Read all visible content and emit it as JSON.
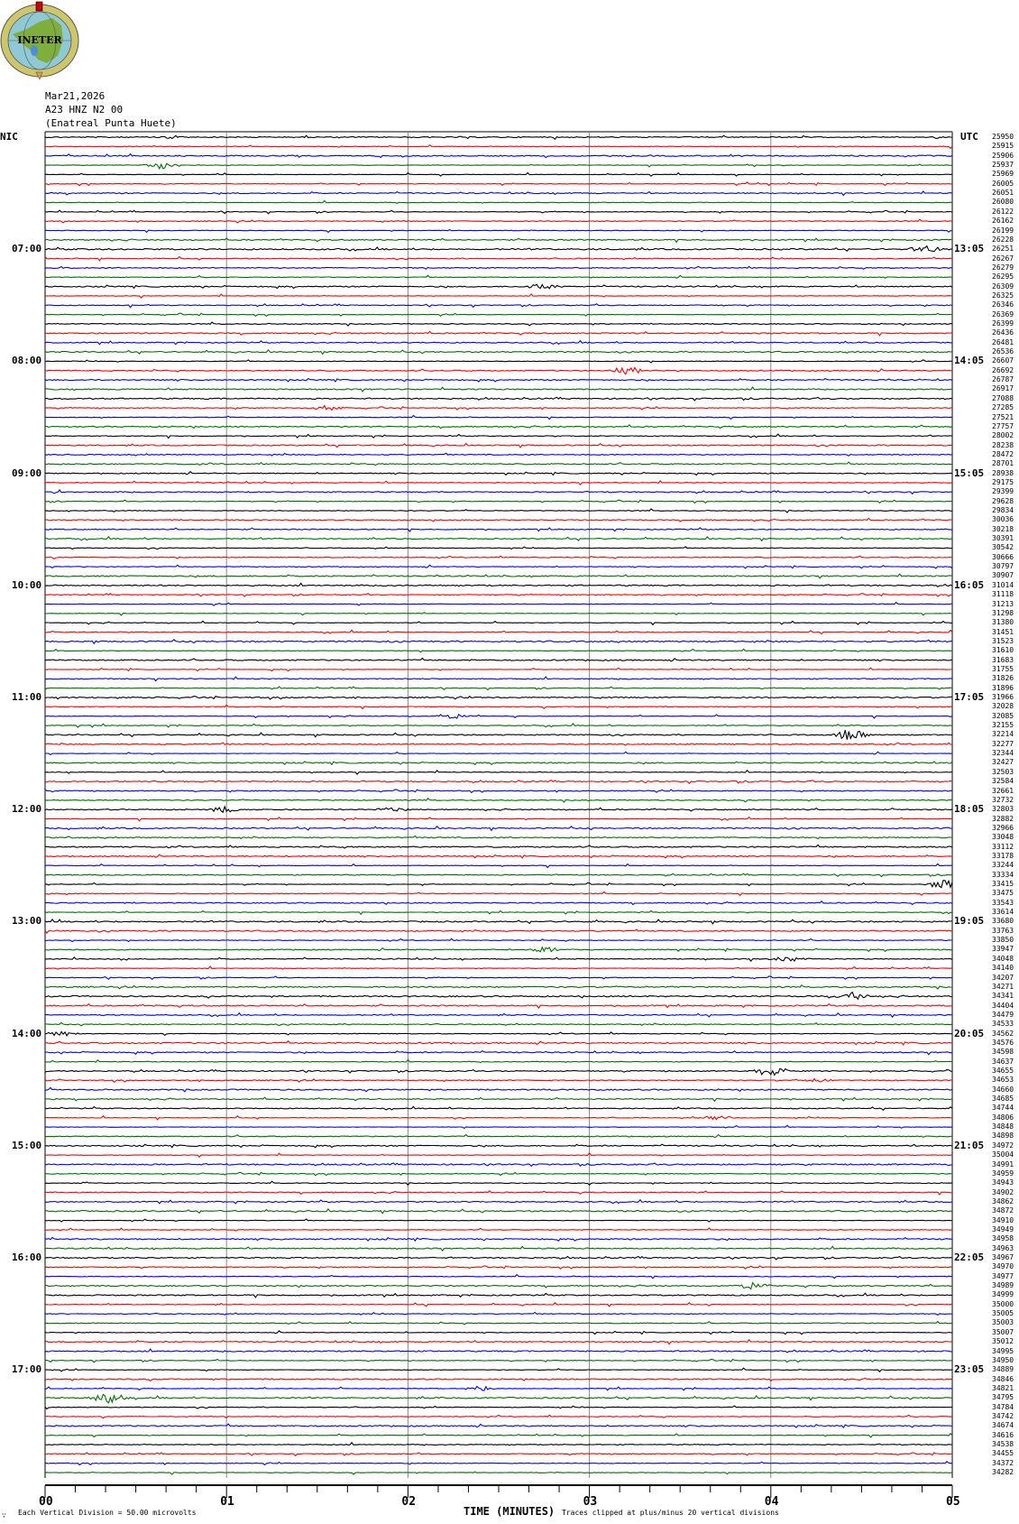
{
  "logo": {
    "text": "INETER",
    "colors": {
      "ring": "#cfc66a",
      "globe": "#8fc9d6",
      "land": "#7fae3c",
      "lake": "#4a8fd8"
    }
  },
  "header": {
    "date": "Mar21,2026",
    "channel": "A23 HNZ N2 00",
    "station": "(Enatreal Punta Huete)"
  },
  "left_zone_label": "NIC",
  "right_zone_label": "UTC",
  "footer": {
    "scale_note": "Each Vertical Division =    50.00 microvolts",
    "xlabel": "TIME (MINUTES)",
    "clip_note": "Traces clipped at plus/minus 20 vertical divisions",
    "corner_mark": "∵"
  },
  "chart_data": {
    "type": "line",
    "subtype": "helicorder",
    "xlabel": "TIME (MINUTES)",
    "xlim": [
      0,
      5
    ],
    "x_ticks": [
      "00",
      "01",
      "02",
      "03",
      "04",
      "05"
    ],
    "grid": true,
    "trace_colors": [
      "#000000",
      "#ff0000",
      "#0000ff",
      "#007000"
    ],
    "left_time_labels": [
      "07:00",
      "08:00",
      "09:00",
      "10:00",
      "11:00",
      "12:00",
      "13:00",
      "14:00",
      "15:00",
      "16:00",
      "17:00"
    ],
    "right_time_labels": [
      "13:05",
      "14:05",
      "15:05",
      "16:05",
      "17:05",
      "18:05",
      "19:05",
      "20:05",
      "21:05",
      "22:05",
      "23:05"
    ],
    "rows_per_hour": 12,
    "first_row_hour": 6,
    "row_counts": [
      25950,
      25915,
      25906,
      25937,
      25969,
      26005,
      26051,
      26080,
      26122,
      26162,
      26199,
      26228,
      26251,
      26267,
      26279,
      26295,
      26309,
      26325,
      26346,
      26369,
      26399,
      26436,
      26481,
      26536,
      26607,
      26692,
      26787,
      26917,
      27088,
      27285,
      27521,
      27757,
      28002,
      28238,
      28472,
      28701,
      28938,
      29175,
      29399,
      29628,
      29834,
      30036,
      30218,
      30391,
      30542,
      30666,
      30797,
      30907,
      31014,
      31118,
      31213,
      31298,
      31380,
      31451,
      31523,
      31610,
      31683,
      31755,
      31826,
      31896,
      31966,
      32028,
      32085,
      32155,
      32214,
      32277,
      32344,
      32427,
      32503,
      32584,
      32661,
      32732,
      32803,
      32882,
      32966,
      33048,
      33112,
      33178,
      33244,
      33334,
      33415,
      33475,
      33543,
      33614,
      33680,
      33763,
      33850,
      33947,
      34048,
      34140,
      34207,
      34271,
      34341,
      34404,
      34479,
      34533,
      34562,
      34576,
      34598,
      34637,
      34655,
      34653,
      34660,
      34685,
      34744,
      34806,
      34848,
      34898,
      34972,
      35004,
      34991,
      34959,
      34943,
      34902,
      34862,
      34872,
      34910,
      34949,
      34958,
      34963,
      34967,
      34970,
      34977,
      34989,
      34999,
      35000,
      35005,
      35003,
      35007,
      35012,
      34995,
      34950,
      34889,
      34846,
      34821,
      34795,
      34784,
      34742,
      34674,
      34616,
      34538,
      34455,
      34372,
      34282
    ],
    "events": [
      {
        "row": 1,
        "minute": 0.7,
        "amp": 2
      },
      {
        "row": 4,
        "minute": 0.65,
        "amp": 5
      },
      {
        "row": 13,
        "minute": 4.85,
        "amp": 5
      },
      {
        "row": 17,
        "minute": 2.75,
        "amp": 3
      },
      {
        "row": 26,
        "minute": 3.2,
        "amp": 6
      },
      {
        "row": 30,
        "minute": 1.55,
        "amp": 3
      },
      {
        "row": 63,
        "minute": 2.25,
        "amp": 3
      },
      {
        "row": 65,
        "minute": 4.45,
        "amp": 8
      },
      {
        "row": 73,
        "minute": 0.98,
        "amp": 4
      },
      {
        "row": 73,
        "minute": 1.92,
        "amp": 3
      },
      {
        "row": 81,
        "minute": 4.95,
        "amp": 6
      },
      {
        "row": 88,
        "minute": 2.75,
        "amp": 4
      },
      {
        "row": 89,
        "minute": 4.1,
        "amp": 3
      },
      {
        "row": 93,
        "minute": 4.45,
        "amp": 4
      },
      {
        "row": 97,
        "minute": 0.1,
        "amp": 3
      },
      {
        "row": 101,
        "minute": 4.0,
        "amp": 6
      },
      {
        "row": 102,
        "minute": 4.25,
        "amp": 3
      },
      {
        "row": 106,
        "minute": 3.7,
        "amp": 3
      },
      {
        "row": 124,
        "minute": 3.9,
        "amp": 4
      },
      {
        "row": 135,
        "minute": 2.4,
        "amp": 3
      },
      {
        "row": 136,
        "minute": 0.35,
        "amp": 6
      }
    ]
  }
}
